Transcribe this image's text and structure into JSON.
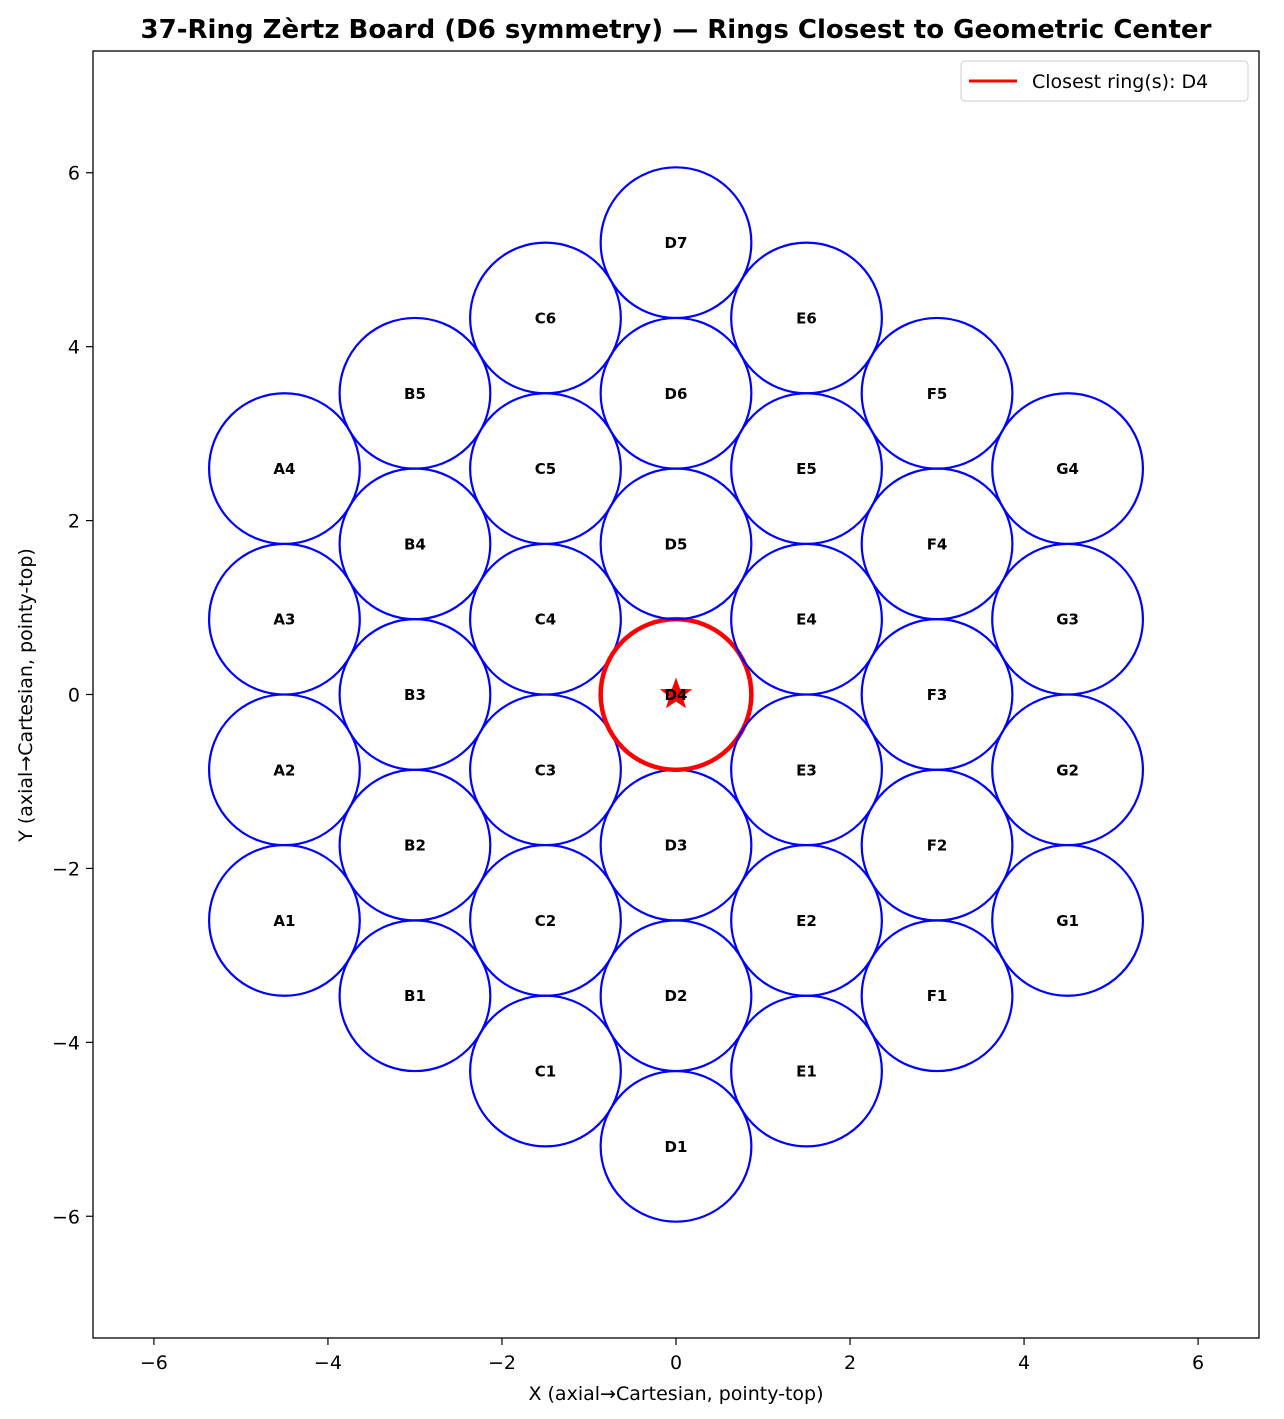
{
  "chart_data": {
    "type": "scatter",
    "title": "37-Ring Zèrtz Board (D6 symmetry) — Rings Closest to Geometric Center",
    "xlabel": "X (axial→Cartesian, pointy-top)",
    "ylabel": "Y (axial→Cartesian, pointy-top)",
    "xlim": [
      -6.7,
      6.7
    ],
    "ylim": [
      -7.4,
      7.4
    ],
    "xticks": [
      -6,
      -4,
      -2,
      0,
      2,
      4,
      6
    ],
    "yticks": [
      -6,
      -4,
      -2,
      0,
      2,
      4,
      6
    ],
    "xtick_labels": [
      "−6",
      "−4",
      "−2",
      "0",
      "2",
      "4",
      "6"
    ],
    "ytick_labels": [
      "−6",
      "−4",
      "−2",
      "0",
      "2",
      "4",
      "6"
    ],
    "grid": false,
    "ring_radius": 0.866,
    "ring_color": "#0000ff",
    "highlight_color": "#ff0000",
    "center_marker": {
      "x": 0,
      "y": 0,
      "shape": "star"
    },
    "legend": {
      "position": "top-right",
      "entries": [
        "Closest ring(s): D4"
      ]
    },
    "highlighted": [
      "D4"
    ],
    "rings": [
      {
        "label": "A1",
        "x": -4.5,
        "y": -2.598
      },
      {
        "label": "A2",
        "x": -4.5,
        "y": -0.866
      },
      {
        "label": "A3",
        "x": -4.5,
        "y": 0.866
      },
      {
        "label": "A4",
        "x": -4.5,
        "y": 2.598
      },
      {
        "label": "B1",
        "x": -3.0,
        "y": -3.464
      },
      {
        "label": "B2",
        "x": -3.0,
        "y": -1.732
      },
      {
        "label": "B3",
        "x": -3.0,
        "y": 0.0
      },
      {
        "label": "B4",
        "x": -3.0,
        "y": 1.732
      },
      {
        "label": "B5",
        "x": -3.0,
        "y": 3.464
      },
      {
        "label": "C1",
        "x": -1.5,
        "y": -4.33
      },
      {
        "label": "C2",
        "x": -1.5,
        "y": -2.598
      },
      {
        "label": "C3",
        "x": -1.5,
        "y": -0.866
      },
      {
        "label": "C4",
        "x": -1.5,
        "y": 0.866
      },
      {
        "label": "C5",
        "x": -1.5,
        "y": 2.598
      },
      {
        "label": "C6",
        "x": -1.5,
        "y": 4.33
      },
      {
        "label": "D1",
        "x": 0.0,
        "y": -5.196
      },
      {
        "label": "D2",
        "x": 0.0,
        "y": -3.464
      },
      {
        "label": "D3",
        "x": 0.0,
        "y": -1.732
      },
      {
        "label": "D4",
        "x": 0.0,
        "y": 0.0
      },
      {
        "label": "D5",
        "x": 0.0,
        "y": 1.732
      },
      {
        "label": "D6",
        "x": 0.0,
        "y": 3.464
      },
      {
        "label": "D7",
        "x": 0.0,
        "y": 5.196
      },
      {
        "label": "E1",
        "x": 1.5,
        "y": -4.33
      },
      {
        "label": "E2",
        "x": 1.5,
        "y": -2.598
      },
      {
        "label": "E3",
        "x": 1.5,
        "y": -0.866
      },
      {
        "label": "E4",
        "x": 1.5,
        "y": 0.866
      },
      {
        "label": "E5",
        "x": 1.5,
        "y": 2.598
      },
      {
        "label": "E6",
        "x": 1.5,
        "y": 4.33
      },
      {
        "label": "F1",
        "x": 3.0,
        "y": -3.464
      },
      {
        "label": "F2",
        "x": 3.0,
        "y": -1.732
      },
      {
        "label": "F3",
        "x": 3.0,
        "y": 0.0
      },
      {
        "label": "F4",
        "x": 3.0,
        "y": 1.732
      },
      {
        "label": "F5",
        "x": 3.0,
        "y": 3.464
      },
      {
        "label": "G1",
        "x": 4.5,
        "y": -2.598
      },
      {
        "label": "G2",
        "x": 4.5,
        "y": -0.866
      },
      {
        "label": "G3",
        "x": 4.5,
        "y": 0.866
      },
      {
        "label": "G4",
        "x": 4.5,
        "y": 2.598
      }
    ]
  }
}
